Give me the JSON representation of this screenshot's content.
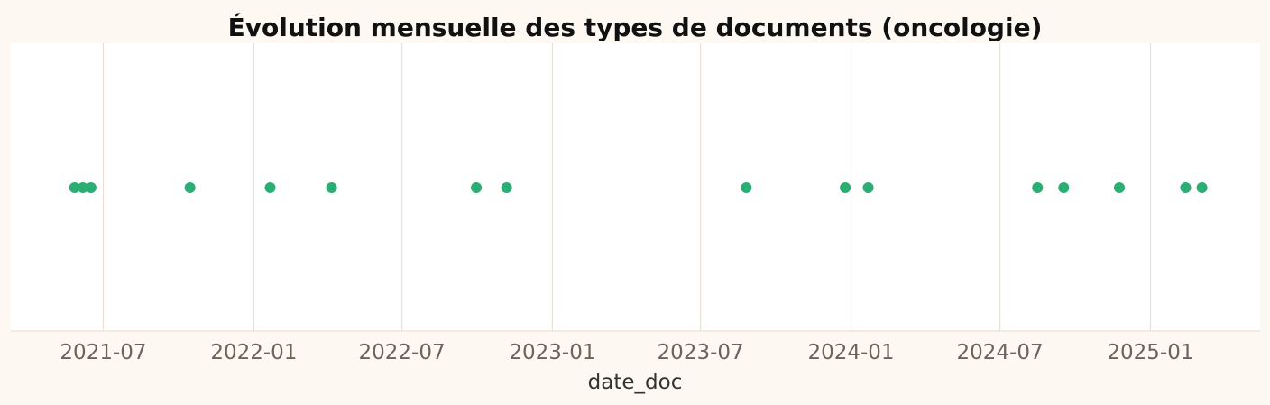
{
  "chart_data": {
    "type": "scatter",
    "title": "Évolution mensuelle des types de documents (oncologie)",
    "xlabel": "date_doc",
    "ylabel": "",
    "x_type": "date",
    "xlim": [
      "2021-03-10",
      "2025-05-15"
    ],
    "x_ticks": [
      "2021-07-01",
      "2022-01-01",
      "2022-07-01",
      "2023-01-01",
      "2023-07-01",
      "2024-01-01",
      "2024-07-01",
      "2025-01-01"
    ],
    "x_tick_labels": [
      "2021-07",
      "2022-01",
      "2022-07",
      "2023-01",
      "2023-07",
      "2024-01",
      "2024-07",
      "2025-01"
    ],
    "grid": "vertical",
    "legend": "none",
    "point_color": "#2aae73",
    "series": [
      {
        "x": [
          "2021-05-27",
          "2021-06-06",
          "2021-06-16",
          "2021-10-15",
          "2022-01-21",
          "2022-04-06",
          "2022-09-30",
          "2022-11-06",
          "2023-08-26",
          "2023-12-25",
          "2024-01-22",
          "2024-08-16",
          "2024-09-17",
          "2024-11-24",
          "2025-02-13",
          "2025-03-05"
        ],
        "y": [
          0,
          0,
          0,
          0,
          0,
          0,
          0,
          0,
          0,
          0,
          0,
          0,
          0,
          0,
          0,
          0
        ]
      }
    ]
  }
}
